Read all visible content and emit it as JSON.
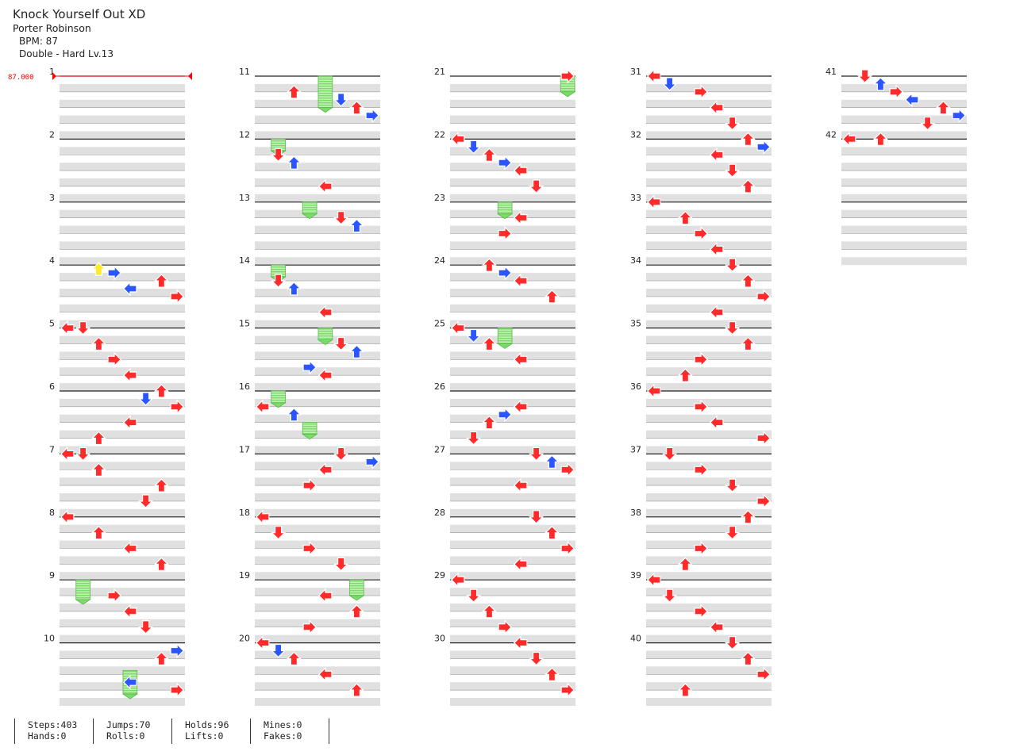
{
  "song": {
    "title": "Knock Yourself Out XD",
    "artist": "Porter Robinson",
    "bpm_line": "BPM: 87",
    "difficulty_line": "Double - Hard Lv.13"
  },
  "bpm_marker": {
    "value": "87.000"
  },
  "measures": {
    "total": 42,
    "columns": [
      {
        "first": 1,
        "last": 10,
        "labels": [
          "1",
          "2",
          "3",
          "4",
          "5",
          "6",
          "7",
          "8",
          "9",
          "10"
        ]
      },
      {
        "first": 11,
        "last": 20,
        "labels": [
          "11",
          "12",
          "13",
          "14",
          "15",
          "16",
          "17",
          "18",
          "19",
          "20"
        ]
      },
      {
        "first": 21,
        "last": 30,
        "labels": [
          "21",
          "22",
          "23",
          "24",
          "25",
          "26",
          "27",
          "28",
          "29",
          "30"
        ]
      },
      {
        "first": 31,
        "last": 40,
        "labels": [
          "31",
          "32",
          "33",
          "34",
          "35",
          "36",
          "37",
          "38",
          "39",
          "40"
        ]
      },
      {
        "first": 41,
        "last": 42,
        "labels": [
          "41",
          "42"
        ]
      }
    ]
  },
  "colors": {
    "quarter": "#ff2a2a",
    "eighth": "#2a55ff",
    "sixteenth": "#ffea2a",
    "twelfth": "#ff8a2a",
    "hold": "#7cdc6a",
    "stripe": "#e0e0e0",
    "bpm": "#ff0000"
  },
  "chart_data": {
    "type": "table",
    "style": "double",
    "lanes": 8,
    "notes": [
      {
        "m": 4,
        "b": 0.25,
        "lane": 2
      },
      {
        "m": 4,
        "b": 0.5,
        "lane": 3
      },
      {
        "m": 4,
        "b": 1,
        "lane": 6
      },
      {
        "m": 4,
        "b": 1.5,
        "lane": 4
      },
      {
        "m": 4,
        "b": 2,
        "lane": 7
      },
      {
        "m": 5,
        "b": 0,
        "lane": 0
      },
      {
        "m": 5,
        "b": 0,
        "lane": 1
      },
      {
        "m": 5,
        "b": 1,
        "lane": 2
      },
      {
        "m": 5,
        "b": 2,
        "lane": 3
      },
      {
        "m": 5,
        "b": 3,
        "lane": 4
      },
      {
        "m": 6,
        "b": 0,
        "lane": 6
      },
      {
        "m": 6,
        "b": 0.5,
        "lane": 5
      },
      {
        "m": 6,
        "b": 1,
        "lane": 7
      },
      {
        "m": 6,
        "b": 2,
        "lane": 4
      },
      {
        "m": 6,
        "b": 3,
        "lane": 2
      },
      {
        "m": 7,
        "b": 0,
        "lane": 0
      },
      {
        "m": 7,
        "b": 0,
        "lane": 1
      },
      {
        "m": 7,
        "b": 1,
        "lane": 2
      },
      {
        "m": 7,
        "b": 2,
        "lane": 6
      },
      {
        "m": 7,
        "b": 3,
        "lane": 5
      },
      {
        "m": 8,
        "b": 0,
        "lane": 0
      },
      {
        "m": 8,
        "b": 1,
        "lane": 2
      },
      {
        "m": 8,
        "b": 2,
        "lane": 4
      },
      {
        "m": 8,
        "b": 3,
        "lane": 6
      },
      {
        "m": 9,
        "b": 1,
        "lane": 3
      },
      {
        "m": 9,
        "b": 2,
        "lane": 4
      },
      {
        "m": 9,
        "b": 3,
        "lane": 5
      },
      {
        "m": 10,
        "b": 0.5,
        "lane": 7
      },
      {
        "m": 10,
        "b": 1,
        "lane": 6
      },
      {
        "m": 10,
        "b": 2.5,
        "lane": 4
      },
      {
        "m": 10,
        "b": 3,
        "lane": 7
      },
      {
        "m": 11,
        "b": 1,
        "lane": 2
      },
      {
        "m": 11,
        "b": 1.5,
        "lane": 5
      },
      {
        "m": 11,
        "b": 2,
        "lane": 6
      },
      {
        "m": 11,
        "b": 2.5,
        "lane": 7
      },
      {
        "m": 12,
        "b": 1,
        "lane": 1
      },
      {
        "m": 12,
        "b": 1.5,
        "lane": 2
      },
      {
        "m": 12,
        "b": 3,
        "lane": 4
      },
      {
        "m": 13,
        "b": 1,
        "lane": 5
      },
      {
        "m": 13,
        "b": 1.5,
        "lane": 6
      },
      {
        "m": 14,
        "b": 1,
        "lane": 1
      },
      {
        "m": 14,
        "b": 1.5,
        "lane": 2
      },
      {
        "m": 14,
        "b": 3,
        "lane": 4
      },
      {
        "m": 15,
        "b": 1,
        "lane": 5
      },
      {
        "m": 15,
        "b": 1.5,
        "lane": 6
      },
      {
        "m": 15,
        "b": 2.5,
        "lane": 3
      },
      {
        "m": 15,
        "b": 3,
        "lane": 4
      },
      {
        "m": 16,
        "b": 1,
        "lane": 0
      },
      {
        "m": 16,
        "b": 1.5,
        "lane": 2
      },
      {
        "m": 17,
        "b": 0,
        "lane": 5
      },
      {
        "m": 17,
        "b": 0.5,
        "lane": 7
      },
      {
        "m": 17,
        "b": 1,
        "lane": 4
      },
      {
        "m": 17,
        "b": 2,
        "lane": 3
      },
      {
        "m": 18,
        "b": 0,
        "lane": 0
      },
      {
        "m": 18,
        "b": 1,
        "lane": 1
      },
      {
        "m": 18,
        "b": 2,
        "lane": 3
      },
      {
        "m": 18,
        "b": 3,
        "lane": 5
      },
      {
        "m": 19,
        "b": 1,
        "lane": 4
      },
      {
        "m": 19,
        "b": 2,
        "lane": 6
      },
      {
        "m": 19,
        "b": 3,
        "lane": 3
      },
      {
        "m": 20,
        "b": 0,
        "lane": 0
      },
      {
        "m": 20,
        "b": 0.5,
        "lane": 1
      },
      {
        "m": 20,
        "b": 1,
        "lane": 2
      },
      {
        "m": 20,
        "b": 2,
        "lane": 4
      },
      {
        "m": 20,
        "b": 3,
        "lane": 6
      },
      {
        "m": 21,
        "b": 0,
        "lane": 7
      },
      {
        "m": 22,
        "b": 0,
        "lane": 0
      },
      {
        "m": 22,
        "b": 0.5,
        "lane": 1
      },
      {
        "m": 22,
        "b": 1,
        "lane": 2
      },
      {
        "m": 22,
        "b": 1.5,
        "lane": 3
      },
      {
        "m": 22,
        "b": 2,
        "lane": 4
      },
      {
        "m": 22,
        "b": 3,
        "lane": 5
      },
      {
        "m": 23,
        "b": 1,
        "lane": 4
      },
      {
        "m": 23,
        "b": 2,
        "lane": 3
      },
      {
        "m": 24,
        "b": 0,
        "lane": 2
      },
      {
        "m": 24,
        "b": 0.5,
        "lane": 3
      },
      {
        "m": 24,
        "b": 1,
        "lane": 4
      },
      {
        "m": 24,
        "b": 2,
        "lane": 6
      },
      {
        "m": 25,
        "b": 0,
        "lane": 0
      },
      {
        "m": 25,
        "b": 0.5,
        "lane": 1
      },
      {
        "m": 25,
        "b": 1,
        "lane": 2
      },
      {
        "m": 25,
        "b": 2,
        "lane": 4
      },
      {
        "m": 26,
        "b": 1,
        "lane": 4
      },
      {
        "m": 26,
        "b": 1.5,
        "lane": 3
      },
      {
        "m": 26,
        "b": 2,
        "lane": 2
      },
      {
        "m": 26,
        "b": 3,
        "lane": 1
      },
      {
        "m": 27,
        "b": 0,
        "lane": 5
      },
      {
        "m": 27,
        "b": 0.5,
        "lane": 6
      },
      {
        "m": 27,
        "b": 1,
        "lane": 7
      },
      {
        "m": 27,
        "b": 2,
        "lane": 4
      },
      {
        "m": 28,
        "b": 0,
        "lane": 5
      },
      {
        "m": 28,
        "b": 1,
        "lane": 6
      },
      {
        "m": 28,
        "b": 2,
        "lane": 7
      },
      {
        "m": 28,
        "b": 3,
        "lane": 4
      },
      {
        "m": 29,
        "b": 0,
        "lane": 0
      },
      {
        "m": 29,
        "b": 1,
        "lane": 1
      },
      {
        "m": 29,
        "b": 2,
        "lane": 2
      },
      {
        "m": 29,
        "b": 3,
        "lane": 3
      },
      {
        "m": 30,
        "b": 0,
        "lane": 4
      },
      {
        "m": 30,
        "b": 1,
        "lane": 5
      },
      {
        "m": 30,
        "b": 2,
        "lane": 6
      },
      {
        "m": 30,
        "b": 3,
        "lane": 7
      },
      {
        "m": 31,
        "b": 0,
        "lane": 0
      },
      {
        "m": 31,
        "b": 0.5,
        "lane": 1
      },
      {
        "m": 31,
        "b": 1,
        "lane": 3
      },
      {
        "m": 31,
        "b": 2,
        "lane": 4
      },
      {
        "m": 31,
        "b": 3,
        "lane": 5
      },
      {
        "m": 32,
        "b": 0,
        "lane": 6
      },
      {
        "m": 32,
        "b": 0.5,
        "lane": 7
      },
      {
        "m": 32,
        "b": 1,
        "lane": 4
      },
      {
        "m": 32,
        "b": 2,
        "lane": 5
      },
      {
        "m": 32,
        "b": 3,
        "lane": 6
      },
      {
        "m": 33,
        "b": 0,
        "lane": 0
      },
      {
        "m": 33,
        "b": 1,
        "lane": 2
      },
      {
        "m": 33,
        "b": 2,
        "lane": 3
      },
      {
        "m": 33,
        "b": 3,
        "lane": 4
      },
      {
        "m": 34,
        "b": 0,
        "lane": 5
      },
      {
        "m": 34,
        "b": 1,
        "lane": 6
      },
      {
        "m": 34,
        "b": 2,
        "lane": 7
      },
      {
        "m": 34,
        "b": 3,
        "lane": 4
      },
      {
        "m": 35,
        "b": 0,
        "lane": 5
      },
      {
        "m": 35,
        "b": 1,
        "lane": 6
      },
      {
        "m": 35,
        "b": 2,
        "lane": 3
      },
      {
        "m": 35,
        "b": 3,
        "lane": 2
      },
      {
        "m": 36,
        "b": 0,
        "lane": 0
      },
      {
        "m": 36,
        "b": 1,
        "lane": 3
      },
      {
        "m": 36,
        "b": 2,
        "lane": 4
      },
      {
        "m": 36,
        "b": 3,
        "lane": 7
      },
      {
        "m": 37,
        "b": 0,
        "lane": 1
      },
      {
        "m": 37,
        "b": 1,
        "lane": 3
      },
      {
        "m": 37,
        "b": 2,
        "lane": 5
      },
      {
        "m": 37,
        "b": 3,
        "lane": 7
      },
      {
        "m": 38,
        "b": 0,
        "lane": 6
      },
      {
        "m": 38,
        "b": 1,
        "lane": 5
      },
      {
        "m": 38,
        "b": 2,
        "lane": 3
      },
      {
        "m": 38,
        "b": 3,
        "lane": 2
      },
      {
        "m": 39,
        "b": 0,
        "lane": 0
      },
      {
        "m": 39,
        "b": 1,
        "lane": 1
      },
      {
        "m": 39,
        "b": 2,
        "lane": 3
      },
      {
        "m": 39,
        "b": 3,
        "lane": 4
      },
      {
        "m": 40,
        "b": 0,
        "lane": 5
      },
      {
        "m": 40,
        "b": 1,
        "lane": 6
      },
      {
        "m": 40,
        "b": 2,
        "lane": 7
      },
      {
        "m": 40,
        "b": 3,
        "lane": 2
      },
      {
        "m": 41,
        "b": 0,
        "lane": 1
      },
      {
        "m": 41,
        "b": 0.5,
        "lane": 2
      },
      {
        "m": 41,
        "b": 1,
        "lane": 3
      },
      {
        "m": 41,
        "b": 1.5,
        "lane": 4
      },
      {
        "m": 41,
        "b": 2,
        "lane": 6
      },
      {
        "m": 41,
        "b": 2.5,
        "lane": 7
      },
      {
        "m": 41,
        "b": 3,
        "lane": 5
      },
      {
        "m": 42,
        "b": 0,
        "lane": 0
      },
      {
        "m": 42,
        "b": 0,
        "lane": 2
      }
    ],
    "holds": [
      {
        "m": 9,
        "b": 0,
        "len": 1.25,
        "lane": 1
      },
      {
        "m": 10,
        "b": 1.75,
        "len": 1.5,
        "lane": 4
      },
      {
        "m": 11,
        "b": 0,
        "len": 2,
        "lane": 4
      },
      {
        "m": 12,
        "b": 0,
        "len": 0.75,
        "lane": 1
      },
      {
        "m": 13,
        "b": 0,
        "len": 0.75,
        "lane": 3
      },
      {
        "m": 14,
        "b": 0,
        "len": 0.75,
        "lane": 1
      },
      {
        "m": 15,
        "b": 0,
        "len": 0.75,
        "lane": 4
      },
      {
        "m": 16,
        "b": 0,
        "len": 0.75,
        "lane": 1
      },
      {
        "m": 16,
        "b": 2,
        "len": 0.75,
        "lane": 3
      },
      {
        "m": 19,
        "b": 0,
        "len": 1,
        "lane": 6
      },
      {
        "m": 21,
        "b": 0,
        "len": 1,
        "lane": 7
      },
      {
        "m": 23,
        "b": 0,
        "len": 0.75,
        "lane": 3
      },
      {
        "m": 25,
        "b": 0,
        "len": 1,
        "lane": 3
      }
    ]
  },
  "stats": [
    {
      "line1": "Steps:403",
      "line2": "Hands:0"
    },
    {
      "line1": "Jumps:70",
      "line2": "Rolls:0"
    },
    {
      "line1": "Holds:96",
      "line2": "Lifts:0"
    },
    {
      "line1": "Mines:0",
      "line2": "Fakes:0"
    }
  ]
}
